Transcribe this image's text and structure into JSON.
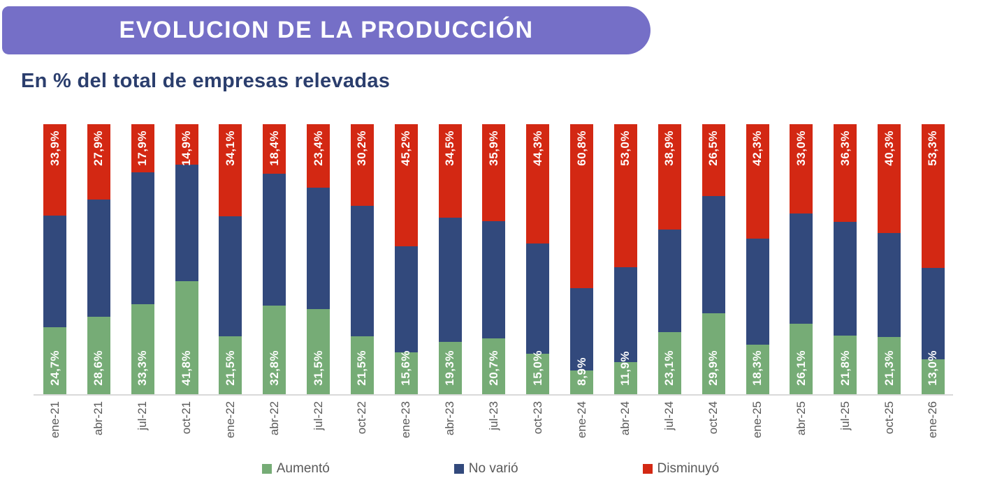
{
  "header": {
    "title": "EVOLUCION DE LA PRODUCCIÓN",
    "subtitle": "En % del total de empresas relevadas"
  },
  "colors": {
    "banner": "#756FC7",
    "aumento": "#76AC76",
    "no_vario": "#32497C",
    "disminuyo": "#D32813",
    "subtitle_text": "#2B3E6D",
    "axis_text": "#595959",
    "axis_line": "#D9D9D9",
    "bar_label_text": "#FFFFFF"
  },
  "legend": [
    {
      "label": "Aumentó",
      "color_key": "aumento"
    },
    {
      "label": "No varió",
      "color_key": "no_vario"
    },
    {
      "label": "Disminuyó",
      "color_key": "disminuyo"
    }
  ],
  "chart_data": {
    "type": "bar",
    "stacked": true,
    "stacked_to": 100,
    "unit": "%",
    "title": "EVOLUCION DE LA PRODUCCIÓN",
    "subtitle": "En % del total de empresas relevadas",
    "xlabel": "",
    "ylabel": "",
    "ylim": [
      0,
      100
    ],
    "grid": false,
    "legend_position": "bottom",
    "categories": [
      "ene-21",
      "abr-21",
      "jul-21",
      "oct-21",
      "ene-22",
      "abr-22",
      "jul-22",
      "oct-22",
      "ene-23",
      "abr-23",
      "jul-23",
      "oct-23",
      "ene-24",
      "abr-24",
      "jul-24",
      "oct-24",
      "ene-25",
      "abr-25",
      "jul-25",
      "oct-25",
      "ene-26"
    ],
    "series": [
      {
        "name": "Aumentó",
        "stack_order": "bottom",
        "data_labels_shown": true,
        "values": [
          24.7,
          28.6,
          33.3,
          41.8,
          21.5,
          32.8,
          31.5,
          21.5,
          15.6,
          19.3,
          20.7,
          15.0,
          8.9,
          11.9,
          23.1,
          29.9,
          18.3,
          26.1,
          21.8,
          21.3,
          13.0
        ],
        "labels": [
          "24,7%",
          "28,6%",
          "33,3%",
          "41,8%",
          "21,5%",
          "32,8%",
          "31,5%",
          "21,5%",
          "15,6%",
          "19,3%",
          "20,7%",
          "15,0%",
          "8,9%",
          "11,9%",
          "23,1%",
          "29,9%",
          "18,3%",
          "26,1%",
          "21,8%",
          "21,3%",
          "13,0%"
        ]
      },
      {
        "name": "No varió",
        "stack_order": "middle",
        "data_labels_shown": false,
        "values": [
          41.4,
          43.5,
          48.8,
          43.3,
          44.4,
          48.8,
          45.1,
          48.3,
          39.2,
          46.2,
          43.4,
          40.7,
          30.3,
          35.1,
          38.0,
          43.6,
          39.4,
          40.9,
          41.9,
          38.4,
          33.7
        ]
      },
      {
        "name": "Disminuyó",
        "stack_order": "top",
        "data_labels_shown": true,
        "values": [
          33.9,
          27.9,
          17.9,
          14.9,
          34.1,
          18.4,
          23.4,
          30.2,
          45.2,
          34.5,
          35.9,
          44.3,
          60.8,
          53.0,
          38.9,
          26.5,
          42.3,
          33.0,
          36.3,
          40.3,
          53.3
        ],
        "labels": [
          "33,9%",
          "27,9%",
          "17,9%",
          "14,9%",
          "34,1%",
          "18,4%",
          "23,4%",
          "30,2%",
          "45,2%",
          "34,5%",
          "35,9%",
          "44,3%",
          "60,8%",
          "53,0%",
          "38,9%",
          "26,5%",
          "42,3%",
          "33,0%",
          "36,3%",
          "40,3%",
          "53,3%"
        ]
      }
    ]
  }
}
